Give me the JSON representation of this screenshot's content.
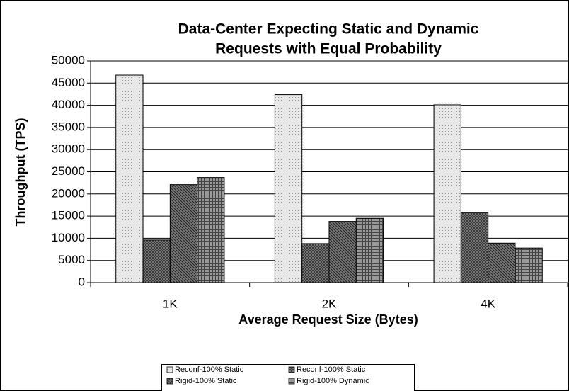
{
  "chart_data": {
    "type": "bar",
    "title": [
      "Data-Center Expecting Static and Dynamic",
      "Requests with Equal Probability"
    ],
    "x_label": "Average Request Size (Bytes)",
    "y_label": "Throughput (TPS)",
    "categories": [
      "1K",
      "2K",
      "4K"
    ],
    "series": [
      {
        "name": "Reconf-100% Static",
        "color": "#e8e8e8",
        "pattern": "dots",
        "values": [
          46800,
          42400,
          40100
        ]
      },
      {
        "name": "Reconf-100% Static",
        "color": "#8c8c8c",
        "pattern": "cross",
        "values": [
          9600,
          8800,
          15800
        ]
      },
      {
        "name": "Rigid-100% Static",
        "color": "#7a7a7a",
        "pattern": "diagonal",
        "values": [
          22100,
          13800,
          8900
        ]
      },
      {
        "name": "Rigid-100% Dynamic",
        "color": "#9a9a9a",
        "pattern": "grid",
        "values": [
          23700,
          14500,
          7800
        ]
      }
    ],
    "ylim": [
      0,
      50000
    ],
    "yticks": [
      0,
      5000,
      10000,
      15000,
      20000,
      25000,
      30000,
      35000,
      40000,
      45000,
      50000
    ],
    "grid": true,
    "legend": "bottom"
  }
}
